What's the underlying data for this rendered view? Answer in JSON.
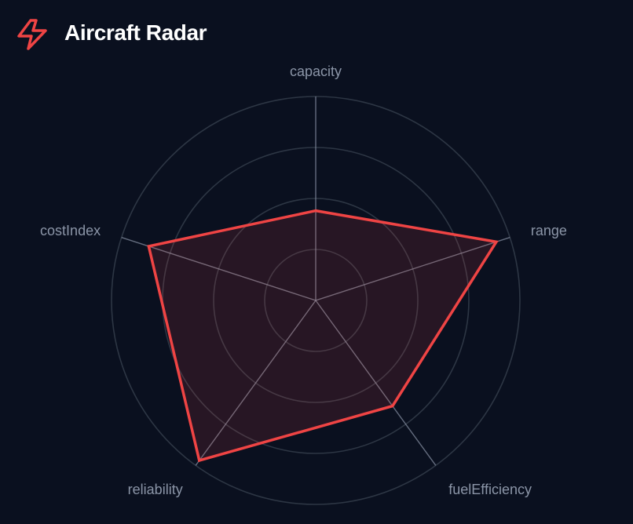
{
  "header": {
    "title": "Aircraft Radar",
    "logo_icon": "lightning-bolt-icon"
  },
  "colors": {
    "background": "#0a101f",
    "accent": "#ef4444",
    "grid": "#4b5563",
    "label": "#8b95a7"
  },
  "chart_data": {
    "type": "radar",
    "categories": [
      "capacity",
      "range",
      "fuelEfficiency",
      "reliability",
      "costIndex"
    ],
    "values": [
      0.44,
      0.93,
      0.64,
      0.97,
      0.86
    ],
    "range": [
      0,
      1
    ],
    "grid_rings": 4,
    "grid": true
  }
}
